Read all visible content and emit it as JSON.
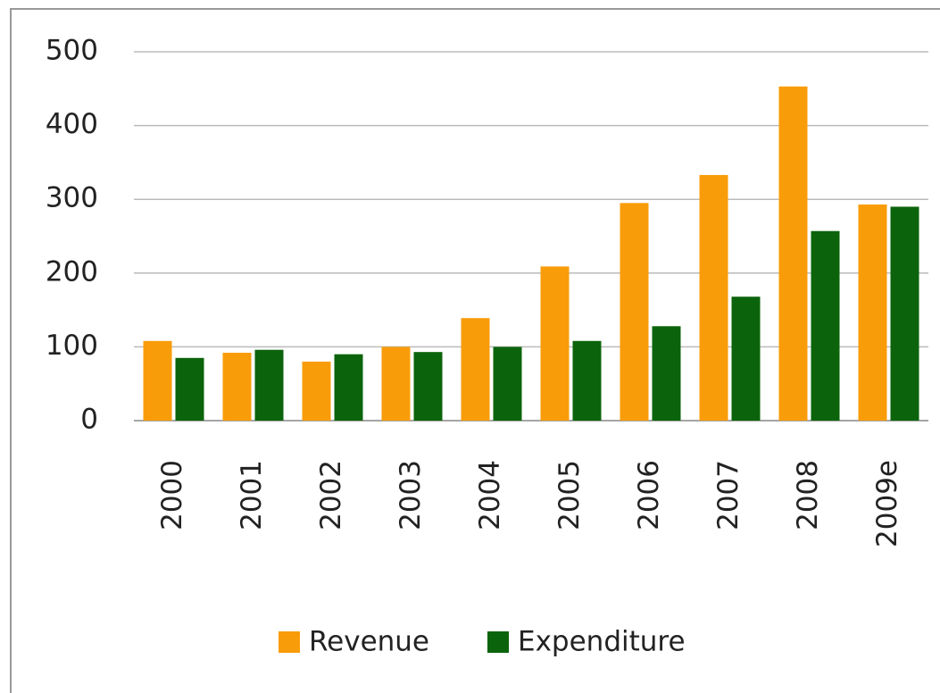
{
  "chart_data": {
    "type": "bar",
    "categories": [
      "2000",
      "2001",
      "2002",
      "2003",
      "2004",
      "2005",
      "2006",
      "2007",
      "2008",
      "2009e"
    ],
    "series": [
      {
        "name": "Revenue",
        "color": "#f99c0a",
        "values": [
          108,
          92,
          80,
          100,
          139,
          209,
          295,
          333,
          453,
          293
        ]
      },
      {
        "name": "Expenditure",
        "color": "#0b640b",
        "values": [
          85,
          96,
          90,
          93,
          100,
          108,
          128,
          168,
          257,
          290
        ]
      }
    ],
    "ylim": [
      0,
      500
    ],
    "yticks": [
      0,
      100,
      200,
      300,
      400,
      500
    ],
    "grid": true,
    "legend": "bottom"
  }
}
